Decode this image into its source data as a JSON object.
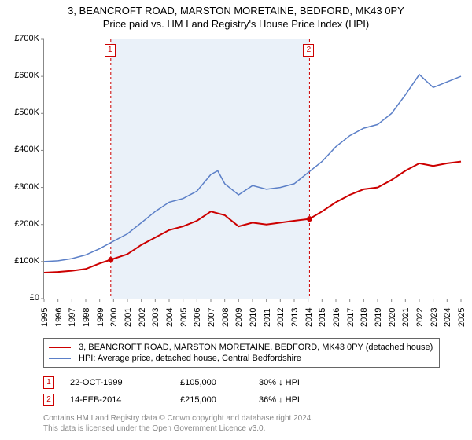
{
  "title": {
    "line1": "3, BEANCROFT ROAD, MARSTON MORETAINE, BEDFORD, MK43 0PY",
    "line2": "Price paid vs. HM Land Registry's House Price Index (HPI)"
  },
  "chart": {
    "type": "line",
    "background_color": "#ffffff",
    "shaded_band_color": "#eaf1f9",
    "axis_color": "#888888",
    "text_color": "#000000",
    "font_size_axis": 11,
    "font_size_title": 13,
    "xlim": [
      1995,
      2025
    ],
    "ylim": [
      0,
      700000
    ],
    "ytick_step": 100000,
    "yticks": [
      "£0",
      "£100K",
      "£200K",
      "£300K",
      "£400K",
      "£500K",
      "£600K",
      "£700K"
    ],
    "xticks": [
      1995,
      1996,
      1997,
      1998,
      1999,
      2000,
      2001,
      2002,
      2003,
      2004,
      2005,
      2006,
      2007,
      2008,
      2009,
      2010,
      2011,
      2012,
      2013,
      2014,
      2015,
      2016,
      2017,
      2018,
      2019,
      2020,
      2021,
      2022,
      2023,
      2024,
      2025
    ],
    "shaded_band": {
      "x_from": 1999.8,
      "x_to": 2014.1
    },
    "series": [
      {
        "id": "price_paid",
        "label": "3, BEANCROFT ROAD, MARSTON MORETAINE, BEDFORD, MK43 0PY (detached house)",
        "color": "#cc0000",
        "line_width": 2,
        "x": [
          1995,
          1996,
          1997,
          1998,
          1999,
          1999.8,
          2001,
          2002,
          2003,
          2004,
          2005,
          2006,
          2007,
          2008,
          2009,
          2010,
          2011,
          2012,
          2013,
          2014.1,
          2015,
          2016,
          2017,
          2018,
          2019,
          2020,
          2021,
          2022,
          2023,
          2024,
          2025
        ],
        "y": [
          70000,
          72000,
          75000,
          80000,
          95000,
          105000,
          120000,
          145000,
          165000,
          185000,
          195000,
          210000,
          235000,
          225000,
          195000,
          205000,
          200000,
          205000,
          210000,
          215000,
          235000,
          260000,
          280000,
          295000,
          300000,
          320000,
          345000,
          365000,
          358000,
          365000,
          370000
        ]
      },
      {
        "id": "hpi",
        "label": "HPI: Average price, detached house, Central Bedfordshire",
        "color": "#5b7fc7",
        "line_width": 1.5,
        "x": [
          1995,
          1996,
          1997,
          1998,
          1999,
          2000,
          2001,
          2002,
          2003,
          2004,
          2005,
          2006,
          2007,
          2007.5,
          2008,
          2009,
          2010,
          2011,
          2012,
          2013,
          2014,
          2015,
          2016,
          2017,
          2018,
          2019,
          2020,
          2021,
          2022,
          2023,
          2024,
          2025
        ],
        "y": [
          100000,
          102000,
          108000,
          118000,
          135000,
          155000,
          175000,
          205000,
          235000,
          260000,
          270000,
          290000,
          335000,
          345000,
          310000,
          280000,
          305000,
          295000,
          300000,
          310000,
          340000,
          370000,
          410000,
          440000,
          460000,
          470000,
          500000,
          550000,
          605000,
          570000,
          585000,
          600000
        ]
      }
    ],
    "sale_points": [
      {
        "n": "1",
        "year": 1999.8,
        "price": 105000
      },
      {
        "n": "2",
        "year": 2014.1,
        "price": 215000
      }
    ],
    "sale_point_color": "#cc0000",
    "sale_point_radius": 3.5,
    "marker_labels_top": [
      {
        "n": "1",
        "year": 1999.8
      },
      {
        "n": "2",
        "year": 2014.1
      }
    ],
    "vertical_marker_style": {
      "color": "#cc0000",
      "dash": "3,3",
      "width": 1
    }
  },
  "legend": {
    "border_color": "#666666",
    "rows": [
      {
        "color": "#cc0000",
        "label": "3, BEANCROFT ROAD, MARSTON MORETAINE, BEDFORD, MK43 0PY (detached house)"
      },
      {
        "color": "#5b7fc7",
        "label": "HPI: Average price, detached house, Central Bedfordshire"
      }
    ]
  },
  "sales": [
    {
      "n": "1",
      "date": "22-OCT-1999",
      "price": "£105,000",
      "diff": "30% ↓ HPI"
    },
    {
      "n": "2",
      "date": "14-FEB-2014",
      "price": "£215,000",
      "diff": "36% ↓ HPI"
    }
  ],
  "footer": {
    "line1": "Contains HM Land Registry data © Crown copyright and database right 2024.",
    "line2": "This data is licensed under the Open Government Licence v3.0."
  }
}
